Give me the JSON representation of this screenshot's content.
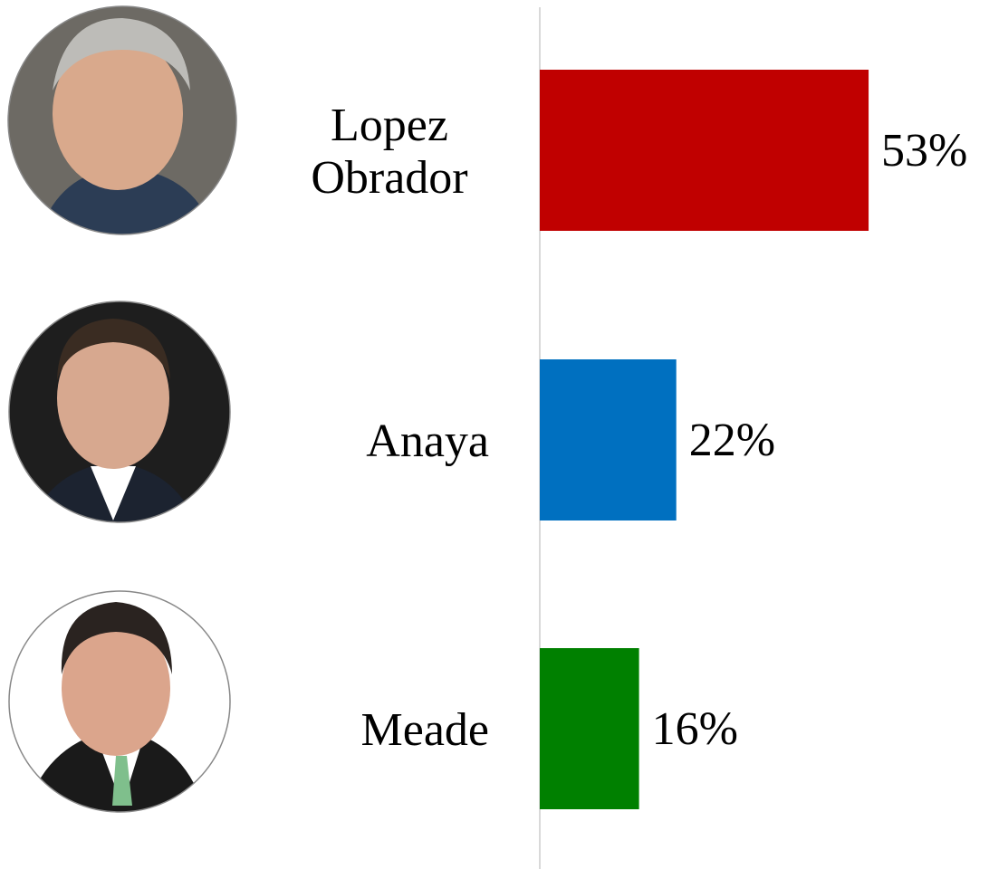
{
  "chart_data": {
    "type": "bar",
    "orientation": "horizontal",
    "categories": [
      "Lopez Obrador",
      "Anaya",
      "Meade"
    ],
    "values": [
      53,
      22,
      16
    ],
    "value_labels": [
      "53%",
      "22%",
      "16%"
    ],
    "colors": [
      "#c00000",
      "#0070c0",
      "#008000"
    ]
  }
}
